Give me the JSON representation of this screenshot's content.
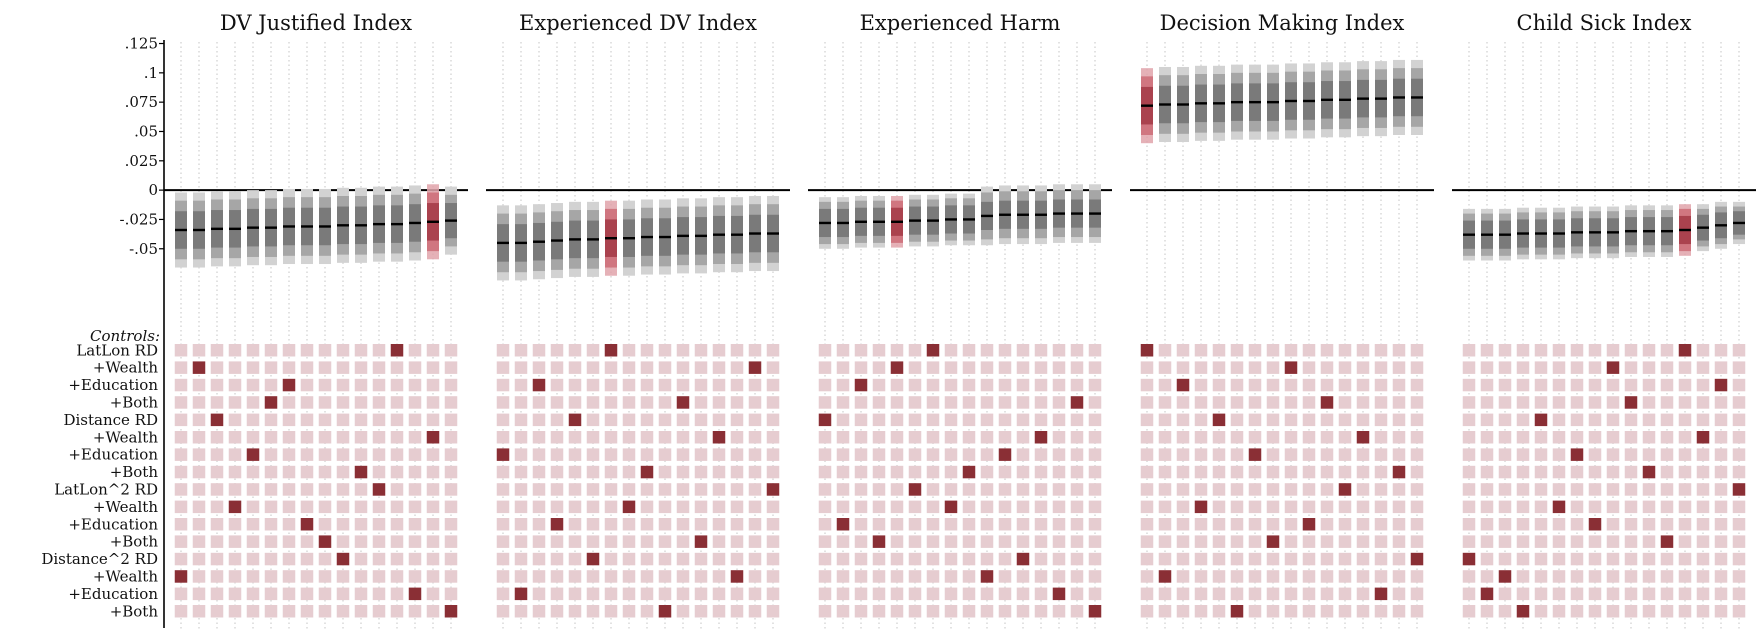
{
  "chart_data": {
    "type": "specification_curve",
    "controls_label": "Controls:",
    "yticks": [
      {
        "value": 0.125,
        "label": ".125"
      },
      {
        "value": 0.1,
        "label": ".1"
      },
      {
        "value": 0.075,
        "label": ".075"
      },
      {
        "value": 0.05,
        "label": ".05"
      },
      {
        "value": 0.025,
        "label": ".025"
      },
      {
        "value": 0,
        "label": "0"
      },
      {
        "value": -0.025,
        "label": "-.025"
      },
      {
        "value": -0.05,
        "label": "-.05"
      }
    ],
    "ylim": [
      -0.115,
      0.128
    ],
    "specifications": [
      "LatLon RD",
      "+Wealth",
      "+Education",
      "+Both",
      "Distance RD",
      "+Wealth",
      "+Education",
      "+Both",
      "LatLon^2 RD",
      "+Wealth",
      "+Education",
      "+Both",
      "Distance^2 RD",
      "+Wealth",
      "+Education",
      "+Both"
    ],
    "colors": {
      "point": "#000000",
      "ci_dark": "#7a7a7a",
      "ci_mid": "#a6a6a6",
      "ci_light": "#d2d2d2",
      "highlight": "#a33a45",
      "grid_off": "#e6ccd0",
      "grid_on": "#8a2f35",
      "zero_line": "#000000"
    },
    "panels": [
      {
        "title": "DV Justified Index",
        "estimates": [
          -0.034,
          -0.034,
          -0.033,
          -0.033,
          -0.032,
          -0.032,
          -0.031,
          -0.031,
          -0.031,
          -0.03,
          -0.03,
          -0.029,
          -0.029,
          -0.028,
          -0.027,
          -0.026
        ],
        "ci90": [
          0.016,
          0.016,
          0.016,
          0.016,
          0.016,
          0.016,
          0.016,
          0.016,
          0.016,
          0.016,
          0.016,
          0.016,
          0.016,
          0.016,
          0.016,
          0.015
        ],
        "ci95": [
          0.025,
          0.025,
          0.025,
          0.025,
          0.025,
          0.025,
          0.025,
          0.025,
          0.025,
          0.025,
          0.025,
          0.025,
          0.025,
          0.025,
          0.025,
          0.022
        ],
        "ci99": [
          0.032,
          0.032,
          0.032,
          0.032,
          0.032,
          0.032,
          0.032,
          0.032,
          0.032,
          0.032,
          0.032,
          0.032,
          0.032,
          0.032,
          0.032,
          0.029
        ],
        "highlight": 14,
        "control_index": [
          13,
          1,
          4,
          9,
          6,
          3,
          2,
          10,
          11,
          12,
          7,
          8,
          0,
          14,
          5,
          15
        ]
      },
      {
        "title": "Experienced DV Index",
        "estimates": [
          -0.045,
          -0.045,
          -0.044,
          -0.043,
          -0.042,
          -0.042,
          -0.041,
          -0.041,
          -0.04,
          -0.04,
          -0.039,
          -0.039,
          -0.038,
          -0.038,
          -0.037,
          -0.037
        ],
        "ci90": [
          0.016,
          0.016,
          0.016,
          0.016,
          0.016,
          0.016,
          0.016,
          0.016,
          0.016,
          0.016,
          0.016,
          0.016,
          0.016,
          0.016,
          0.016,
          0.016
        ],
        "ci95": [
          0.025,
          0.025,
          0.025,
          0.025,
          0.025,
          0.025,
          0.025,
          0.025,
          0.025,
          0.025,
          0.025,
          0.025,
          0.025,
          0.025,
          0.025,
          0.025
        ],
        "ci99": [
          0.032,
          0.032,
          0.032,
          0.032,
          0.032,
          0.032,
          0.032,
          0.032,
          0.032,
          0.032,
          0.032,
          0.032,
          0.032,
          0.032,
          0.032,
          0.032
        ],
        "highlight": 6,
        "control_index": [
          6,
          14,
          2,
          10,
          4,
          12,
          0,
          9,
          7,
          15,
          3,
          11,
          5,
          13,
          1,
          8
        ]
      },
      {
        "title": "Experienced Harm",
        "estimates": [
          -0.028,
          -0.028,
          -0.027,
          -0.027,
          -0.027,
          -0.026,
          -0.026,
          -0.025,
          -0.025,
          -0.022,
          -0.021,
          -0.021,
          -0.021,
          -0.02,
          -0.02,
          -0.02
        ],
        "ci90": [
          0.012,
          0.012,
          0.012,
          0.012,
          0.012,
          0.012,
          0.012,
          0.012,
          0.012,
          0.012,
          0.012,
          0.012,
          0.012,
          0.012,
          0.012,
          0.012
        ],
        "ci95": [
          0.018,
          0.018,
          0.018,
          0.018,
          0.018,
          0.018,
          0.018,
          0.018,
          0.018,
          0.02,
          0.02,
          0.02,
          0.02,
          0.02,
          0.02,
          0.02
        ],
        "ci99": [
          0.022,
          0.022,
          0.022,
          0.022,
          0.022,
          0.022,
          0.022,
          0.022,
          0.022,
          0.025,
          0.025,
          0.025,
          0.025,
          0.025,
          0.025,
          0.025
        ],
        "highlight": 4,
        "control_index": [
          4,
          10,
          2,
          11,
          1,
          8,
          0,
          9,
          7,
          13,
          6,
          12,
          5,
          14,
          3,
          15
        ]
      },
      {
        "title": "Decision Making Index",
        "estimates": [
          0.072,
          0.073,
          0.073,
          0.074,
          0.074,
          0.075,
          0.075,
          0.075,
          0.076,
          0.076,
          0.077,
          0.077,
          0.078,
          0.078,
          0.079,
          0.079
        ],
        "ci90": [
          0.016,
          0.016,
          0.016,
          0.016,
          0.016,
          0.016,
          0.016,
          0.016,
          0.016,
          0.016,
          0.016,
          0.016,
          0.016,
          0.016,
          0.016,
          0.016
        ],
        "ci95": [
          0.025,
          0.025,
          0.025,
          0.025,
          0.025,
          0.025,
          0.025,
          0.025,
          0.025,
          0.025,
          0.025,
          0.025,
          0.025,
          0.025,
          0.025,
          0.025
        ],
        "ci99": [
          0.032,
          0.032,
          0.032,
          0.032,
          0.032,
          0.032,
          0.032,
          0.032,
          0.032,
          0.032,
          0.032,
          0.032,
          0.032,
          0.032,
          0.032,
          0.032
        ],
        "highlight": 0,
        "control_index": [
          0,
          13,
          2,
          9,
          4,
          15,
          6,
          11,
          1,
          10,
          3,
          8,
          5,
          14,
          7,
          12
        ]
      },
      {
        "title": "Child Sick Index",
        "estimates": [
          -0.038,
          -0.038,
          -0.038,
          -0.037,
          -0.037,
          -0.037,
          -0.036,
          -0.036,
          -0.036,
          -0.035,
          -0.035,
          -0.035,
          -0.034,
          -0.032,
          -0.03,
          -0.028
        ],
        "ci90": [
          0.012,
          0.012,
          0.012,
          0.012,
          0.012,
          0.012,
          0.012,
          0.012,
          0.012,
          0.012,
          0.012,
          0.012,
          0.012,
          0.011,
          0.011,
          0.01
        ],
        "ci95": [
          0.018,
          0.018,
          0.018,
          0.018,
          0.018,
          0.018,
          0.018,
          0.018,
          0.018,
          0.018,
          0.018,
          0.018,
          0.018,
          0.016,
          0.016,
          0.014
        ],
        "ci99": [
          0.022,
          0.022,
          0.022,
          0.022,
          0.022,
          0.022,
          0.022,
          0.022,
          0.022,
          0.022,
          0.022,
          0.022,
          0.022,
          0.02,
          0.02,
          0.018
        ],
        "highlight": 12,
        "control_index": [
          12,
          14,
          13,
          15,
          4,
          9,
          6,
          10,
          1,
          3,
          7,
          11,
          0,
          5,
          2,
          8
        ]
      }
    ]
  }
}
